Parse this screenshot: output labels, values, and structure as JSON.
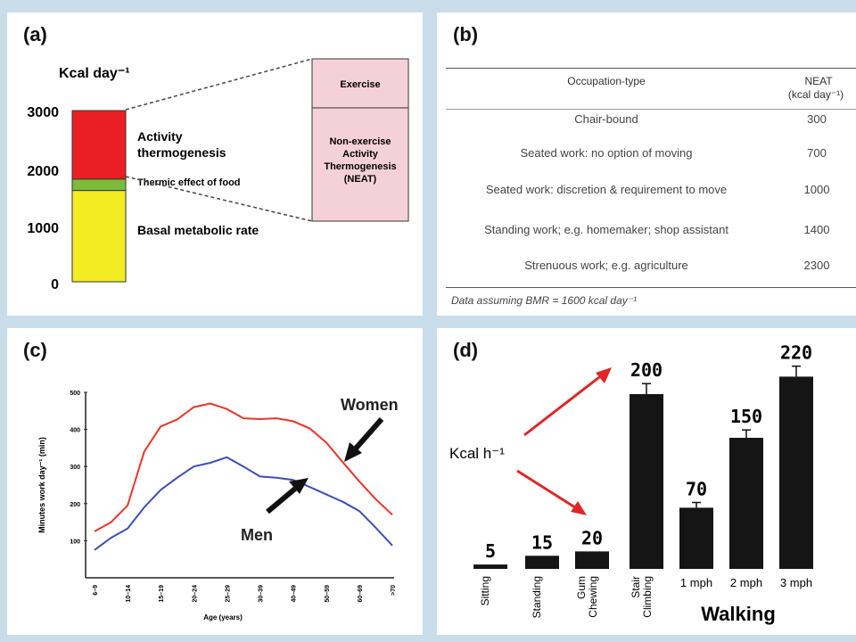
{
  "panel_a": {
    "letter": "(a)",
    "unit_label": "Kcal day⁻¹",
    "y_ticks": [
      "3000",
      "2000",
      "1000",
      "0"
    ],
    "components": [
      {
        "name": "Basal metabolic rate",
        "label": "Basal metabolic rate",
        "value": 1600,
        "color": "#f3ec23"
      },
      {
        "name": "Thermic effect of food",
        "label": "Thermic effect of food",
        "value": 200,
        "color": "#7dbb3a"
      },
      {
        "name": "Activity thermogenesis",
        "label_line1": "Activity",
        "label_line2": "thermogenesis",
        "value": 1200,
        "color": "#ea1f26"
      }
    ],
    "breakdown": {
      "exercise": "Exercise",
      "neat_lines": [
        "Non-exercise",
        "Activity",
        "Thermogenesis",
        "(NEAT)"
      ],
      "fill": "#f4d1da"
    }
  },
  "panel_b": {
    "letter": "(b)",
    "headers": {
      "occupation": "Occupation-type",
      "neat_line1": "NEAT",
      "neat_line2": "(kcal day⁻¹)"
    },
    "rows": [
      {
        "occupation": "Chair-bound",
        "neat": "300"
      },
      {
        "occupation": "Seated work: no option of moving",
        "neat": "700"
      },
      {
        "occupation": "Seated work: discretion & requirement to move",
        "neat": "1000"
      },
      {
        "occupation": "Standing work; e.g. homemaker; shop assistant",
        "neat": "1400"
      },
      {
        "occupation": "Strenuous work; e.g. agriculture",
        "neat": "2300"
      }
    ],
    "footnote": "Data assuming BMR = 1600 kcal day⁻¹"
  },
  "chart_data": [
    {
      "type": "line",
      "panel": "(c)",
      "xlabel": "Age (years)",
      "ylabel": "Minutes work day⁻¹ (min)",
      "categories": [
        "6–9",
        "10–14",
        "15–19",
        "20–24",
        "25–29",
        "30–39",
        "40–49",
        "50–59",
        "60–69",
        ">70"
      ],
      "y_ticks": [
        100,
        200,
        300,
        400,
        500
      ],
      "ylim": [
        0,
        500
      ],
      "series": [
        {
          "name": "Women",
          "color": "#e8352a",
          "points": [
            [
              0,
              125
            ],
            [
              1,
              150
            ],
            [
              2,
              195
            ],
            [
              3,
              340
            ],
            [
              4,
              408
            ],
            [
              5,
              427
            ],
            [
              6,
              460
            ],
            [
              7,
              470
            ],
            [
              8,
              455
            ],
            [
              9,
              430
            ],
            [
              10,
              428
            ],
            [
              11,
              430
            ],
            [
              12,
              422
            ],
            [
              13,
              403
            ],
            [
              14,
              365
            ],
            [
              15,
              312
            ],
            [
              16,
              260
            ],
            [
              17,
              212
            ],
            [
              18,
              170
            ]
          ]
        },
        {
          "name": "Men",
          "color": "#3b4eb5",
          "points": [
            [
              0,
              75
            ],
            [
              1,
              108
            ],
            [
              2,
              133
            ],
            [
              3,
              190
            ],
            [
              4,
              237
            ],
            [
              5,
              270
            ],
            [
              6,
              300
            ],
            [
              7,
              310
            ],
            [
              8,
              325
            ],
            [
              9,
              300
            ],
            [
              10,
              273
            ],
            [
              11,
              270
            ],
            [
              12,
              264
            ],
            [
              13,
              245
            ],
            [
              14,
              225
            ],
            [
              15,
              205
            ],
            [
              16,
              180
            ],
            [
              17,
              135
            ],
            [
              18,
              87
            ]
          ]
        }
      ],
      "annotations": [
        "Women",
        "Men"
      ]
    },
    {
      "type": "bar",
      "panel": "(d)",
      "ylabel": "Kcal h⁻¹",
      "categories": [
        "Sitting",
        "Standing",
        "Gum Chewing",
        "Stair Climbing",
        "1 mph",
        "2 mph",
        "3 mph"
      ],
      "values": [
        5,
        15,
        20,
        200,
        70,
        150,
        220
      ],
      "value_labels": [
        "5",
        "15",
        "20",
        "200",
        "70",
        "150",
        "220"
      ],
      "group_label": "Walking",
      "error_bars": [
        0,
        0,
        0,
        12,
        6,
        9,
        12
      ],
      "bar_color": "#151515"
    }
  ]
}
